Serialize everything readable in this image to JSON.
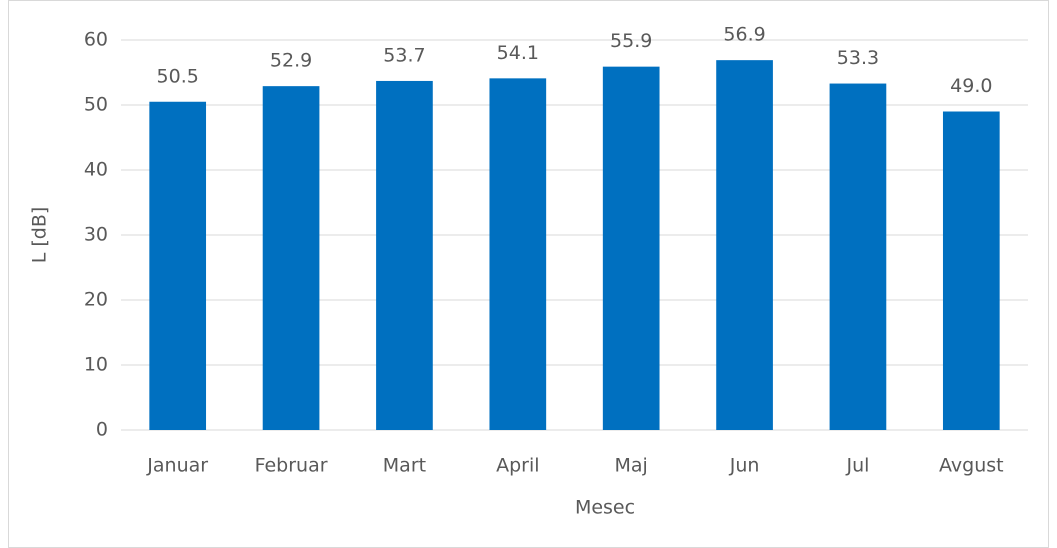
{
  "chart_data": {
    "type": "bar",
    "x_label": "Mesec",
    "y_label": "L [dB]",
    "categories": [
      "Januar",
      "Februar",
      "Mart",
      "April",
      "Maj",
      "Jun",
      "Jul",
      "Avgust"
    ],
    "values": [
      50.5,
      52.9,
      53.7,
      54.1,
      55.9,
      56.9,
      53.3,
      49.0
    ],
    "value_labels": [
      "50.5",
      "52.9",
      "53.7",
      "54.1",
      "55.9",
      "56.9",
      "53.3",
      "49.0"
    ],
    "color": "#0070c0",
    "ylim": [
      0,
      60
    ],
    "yticks": [
      0,
      10,
      20,
      30,
      40,
      50,
      60
    ],
    "grid": true
  }
}
